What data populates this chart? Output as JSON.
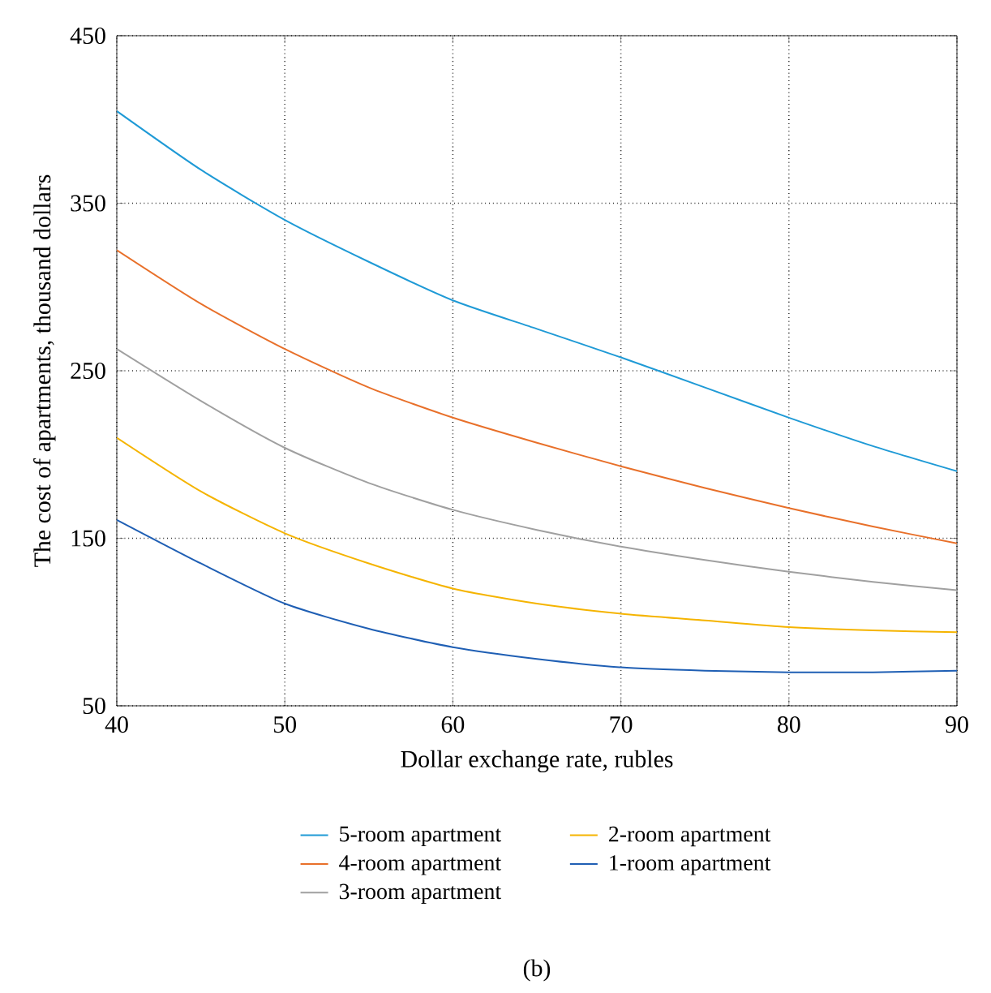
{
  "chart_data": {
    "type": "line",
    "xlabel": "Dollar exchange rate, rubles",
    "ylabel": "The cost of apartments, thousand dollars",
    "x": [
      40,
      45,
      50,
      55,
      60,
      65,
      70,
      75,
      80,
      85,
      90
    ],
    "series": [
      {
        "name": "5-room apartment",
        "color": "#1f9ad6",
        "values": [
          405,
          370,
          340,
          315,
          292,
          275,
          258,
          240,
          222,
          205,
          190
        ]
      },
      {
        "name": "4-room apartment",
        "color": "#e8702a",
        "values": [
          322,
          290,
          263,
          240,
          222,
          207,
          193,
          180,
          168,
          157,
          147
        ]
      },
      {
        "name": "3-room apartment",
        "color": "#a0a0a0",
        "values": [
          263,
          232,
          204,
          183,
          167,
          155,
          145,
          137,
          130,
          124,
          119
        ]
      },
      {
        "name": "2-room apartment",
        "color": "#f5b400",
        "values": [
          210,
          178,
          153,
          135,
          120,
          111,
          105,
          101,
          97,
          95,
          94
        ]
      },
      {
        "name": "1-room apartment",
        "color": "#1f5fb4",
        "values": [
          161,
          135,
          111,
          96,
          85,
          78,
          73,
          71,
          70,
          70,
          71
        ]
      }
    ],
    "xlim": [
      40,
      90
    ],
    "ylim": [
      50,
      450
    ],
    "xticks": [
      40,
      50,
      60,
      70,
      80,
      90
    ],
    "yticks": [
      50,
      150,
      250,
      350,
      450
    ],
    "grid": true,
    "legend": "bottom",
    "marker": "none",
    "line_style": "solid",
    "annotations": [
      "(b)"
    ]
  }
}
